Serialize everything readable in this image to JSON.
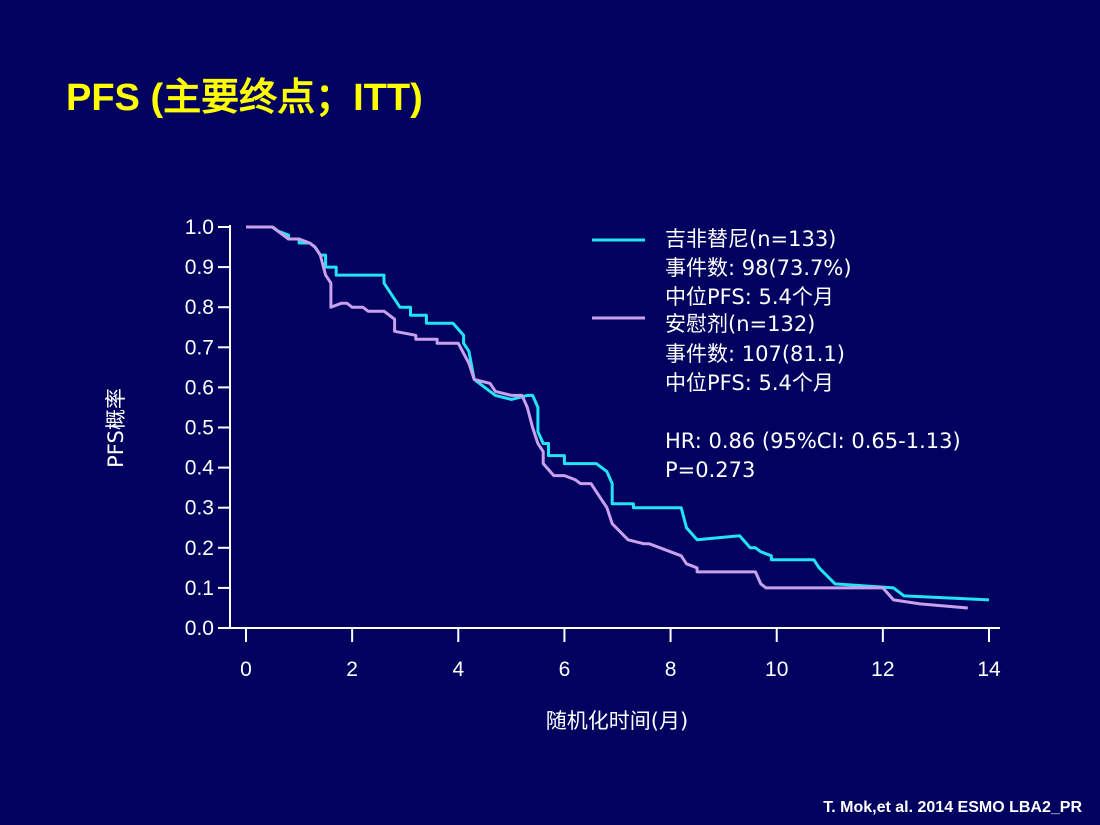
{
  "slide": {
    "title": "PFS (主要终点；ITT)",
    "citation": "T. Mok,et al. 2014 ESMO  LBA2_PR"
  },
  "colors": {
    "background": "#010160",
    "title": "#ffff00",
    "gefitinib": "#22e4f5",
    "placebo": "#c9a0ec",
    "axis": "#ffffff"
  },
  "chart_data": {
    "type": "line",
    "xlabel": "随机化时间(月)",
    "ylabel": "PFS概率",
    "xlim": [
      0,
      14
    ],
    "ylim": [
      0,
      1.0
    ],
    "x_ticks": [
      0,
      2,
      4,
      6,
      8,
      10,
      12,
      14
    ],
    "y_ticks": [
      "0.0",
      "0.1",
      "0.2",
      "0.3",
      "0.4",
      "0.5",
      "0.6",
      "0.7",
      "0.8",
      "0.9",
      "1.0"
    ],
    "legend_position": "top-right",
    "series": [
      {
        "name": "吉非替尼(n=133)",
        "details": [
          "事件数: 98(73.7%)",
          "中位PFS: 5.4个月"
        ],
        "color": "#22e4f5",
        "points": [
          [
            0,
            1.0
          ],
          [
            0.5,
            1.0
          ],
          [
            0.6,
            0.99
          ],
          [
            0.8,
            0.98
          ],
          [
            0.8,
            0.97
          ],
          [
            1.0,
            0.97
          ],
          [
            1.0,
            0.96
          ],
          [
            1.2,
            0.96
          ],
          [
            1.3,
            0.95
          ],
          [
            1.4,
            0.93
          ],
          [
            1.5,
            0.93
          ],
          [
            1.5,
            0.9
          ],
          [
            1.7,
            0.9
          ],
          [
            1.7,
            0.88
          ],
          [
            2.6,
            0.88
          ],
          [
            2.6,
            0.86
          ],
          [
            2.8,
            0.82
          ],
          [
            2.9,
            0.8
          ],
          [
            3.1,
            0.8
          ],
          [
            3.1,
            0.78
          ],
          [
            3.4,
            0.78
          ],
          [
            3.4,
            0.76
          ],
          [
            3.9,
            0.76
          ],
          [
            4.1,
            0.73
          ],
          [
            4.1,
            0.71
          ],
          [
            4.2,
            0.69
          ],
          [
            4.3,
            0.62
          ],
          [
            4.5,
            0.6
          ],
          [
            4.7,
            0.58
          ],
          [
            5.0,
            0.57
          ],
          [
            5.3,
            0.58
          ],
          [
            5.4,
            0.58
          ],
          [
            5.5,
            0.55
          ],
          [
            5.5,
            0.49
          ],
          [
            5.6,
            0.46
          ],
          [
            5.7,
            0.46
          ],
          [
            5.7,
            0.43
          ],
          [
            6.0,
            0.43
          ],
          [
            6.0,
            0.41
          ],
          [
            6.6,
            0.41
          ],
          [
            6.8,
            0.39
          ],
          [
            6.9,
            0.36
          ],
          [
            6.9,
            0.31
          ],
          [
            7.3,
            0.31
          ],
          [
            7.3,
            0.3
          ],
          [
            8.2,
            0.3
          ],
          [
            8.3,
            0.25
          ],
          [
            8.5,
            0.22
          ],
          [
            9.3,
            0.23
          ],
          [
            9.5,
            0.2
          ],
          [
            9.6,
            0.2
          ],
          [
            9.7,
            0.19
          ],
          [
            9.9,
            0.18
          ],
          [
            9.9,
            0.17
          ],
          [
            10.7,
            0.17
          ],
          [
            10.8,
            0.15
          ],
          [
            11.1,
            0.11
          ],
          [
            12.2,
            0.1
          ],
          [
            12.4,
            0.08
          ],
          [
            14.0,
            0.07
          ]
        ]
      },
      {
        "name": "安慰剂(n=132)",
        "details": [
          "事件数: 107(81.1)",
          "中位PFS: 5.4个月"
        ],
        "color": "#c9a0ec",
        "points": [
          [
            0,
            1.0
          ],
          [
            0.5,
            1.0
          ],
          [
            0.6,
            0.99
          ],
          [
            0.8,
            0.97
          ],
          [
            1.0,
            0.97
          ],
          [
            1.2,
            0.96
          ],
          [
            1.3,
            0.95
          ],
          [
            1.4,
            0.93
          ],
          [
            1.5,
            0.88
          ],
          [
            1.6,
            0.86
          ],
          [
            1.6,
            0.8
          ],
          [
            1.8,
            0.81
          ],
          [
            1.9,
            0.81
          ],
          [
            2.0,
            0.8
          ],
          [
            2.2,
            0.8
          ],
          [
            2.3,
            0.79
          ],
          [
            2.6,
            0.79
          ],
          [
            2.8,
            0.77
          ],
          [
            2.8,
            0.74
          ],
          [
            3.2,
            0.73
          ],
          [
            3.2,
            0.72
          ],
          [
            3.6,
            0.72
          ],
          [
            3.6,
            0.71
          ],
          [
            3.9,
            0.71
          ],
          [
            4.0,
            0.71
          ],
          [
            4.2,
            0.66
          ],
          [
            4.3,
            0.62
          ],
          [
            4.6,
            0.61
          ],
          [
            4.7,
            0.59
          ],
          [
            5.0,
            0.58
          ],
          [
            5.2,
            0.58
          ],
          [
            5.3,
            0.55
          ],
          [
            5.4,
            0.5
          ],
          [
            5.5,
            0.46
          ],
          [
            5.6,
            0.44
          ],
          [
            5.6,
            0.41
          ],
          [
            5.8,
            0.38
          ],
          [
            6.0,
            0.38
          ],
          [
            6.2,
            0.37
          ],
          [
            6.3,
            0.36
          ],
          [
            6.5,
            0.36
          ],
          [
            6.6,
            0.34
          ],
          [
            6.8,
            0.3
          ],
          [
            6.9,
            0.26
          ],
          [
            7.2,
            0.22
          ],
          [
            7.5,
            0.21
          ],
          [
            7.6,
            0.21
          ],
          [
            7.8,
            0.2
          ],
          [
            8.0,
            0.19
          ],
          [
            8.2,
            0.18
          ],
          [
            8.3,
            0.16
          ],
          [
            8.5,
            0.15
          ],
          [
            8.5,
            0.14
          ],
          [
            9.6,
            0.14
          ],
          [
            9.7,
            0.11
          ],
          [
            9.8,
            0.1
          ],
          [
            12.0,
            0.1
          ],
          [
            12.2,
            0.07
          ],
          [
            12.7,
            0.06
          ],
          [
            13.6,
            0.05
          ]
        ]
      }
    ],
    "annotations": [
      "HR: 0.86 (95%CI: 0.65-1.13)",
      "P=0.273"
    ]
  }
}
